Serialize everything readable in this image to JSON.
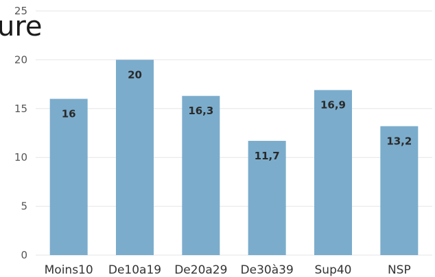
{
  "title_fragment": "ure",
  "chart_data": {
    "type": "bar",
    "title": "",
    "xlabel": "",
    "ylabel": "",
    "categories": [
      "Moins10",
      "De10a19",
      "De20a29",
      "De30à39",
      "Sup40",
      "NSP"
    ],
    "values": [
      16,
      20,
      16.3,
      11.7,
      16.9,
      13.2
    ],
    "data_labels": [
      "16",
      "20",
      "16,3",
      "11,7",
      "16,9",
      "13,2"
    ],
    "ylim": [
      0,
      25
    ],
    "yticks": [
      0,
      5,
      10,
      15,
      20,
      25
    ],
    "grid": true,
    "legend": "none",
    "bar_color": "#7baccc",
    "grid_color": "#e6e6e6"
  }
}
